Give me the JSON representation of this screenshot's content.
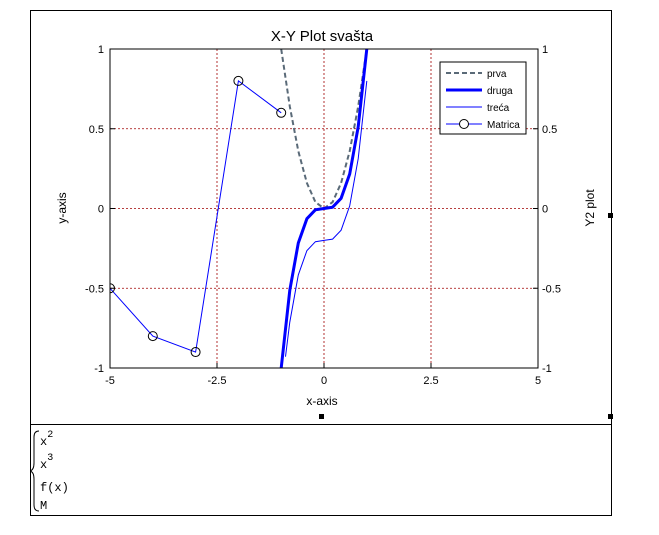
{
  "chart_data": {
    "type": "line",
    "title": "X-Y Plot svašta",
    "xlabel": "x-axis",
    "ylabel": "y-axis",
    "y2label": "Y2 plot",
    "xlim": [
      -5,
      5
    ],
    "ylim": [
      -1,
      1
    ],
    "x_ticks": [
      "-5",
      "-2.5",
      "0",
      "2.5",
      "5"
    ],
    "y_ticks": [
      "1",
      "0.5",
      "0",
      "-0.5",
      "-1"
    ],
    "y2_ticks": [
      "1",
      "0.5",
      "0",
      "-0.5",
      "-1"
    ],
    "grid": true,
    "legend_position": "top-right",
    "series": [
      {
        "name": "prva",
        "color": "#5a6a78",
        "style": "dashed",
        "function": "x^2",
        "x": [
          -1,
          -0.8,
          -0.6,
          -0.4,
          -0.2,
          0,
          0.2,
          0.4,
          0.6,
          0.8,
          1
        ],
        "y": [
          1,
          0.64,
          0.36,
          0.16,
          0.04,
          0,
          0.04,
          0.16,
          0.36,
          0.64,
          1
        ]
      },
      {
        "name": "druga",
        "color": "#0000ff",
        "style": "thick",
        "function": "x^3",
        "x": [
          -1,
          -0.8,
          -0.6,
          -0.4,
          -0.2,
          0,
          0.2,
          0.4,
          0.6,
          0.8,
          1
        ],
        "y": [
          -1,
          -0.512,
          -0.216,
          -0.064,
          -0.008,
          0,
          0.008,
          0.064,
          0.216,
          0.512,
          1
        ]
      },
      {
        "name": "treća",
        "color": "#0000ff",
        "style": "thin",
        "function": "f(x)",
        "x": [
          -0.9,
          -0.8,
          -0.6,
          -0.4,
          -0.2,
          0,
          0.2,
          0.4,
          0.6,
          0.8,
          1
        ],
        "y": [
          -0.929,
          -0.712,
          -0.416,
          -0.264,
          -0.208,
          -0.2,
          -0.192,
          -0.136,
          0.016,
          0.312,
          0.8
        ]
      },
      {
        "name": "Matrica",
        "color": "#0000ff",
        "style": "circles",
        "function": "M",
        "x": [
          -5,
          -4,
          -3,
          -2,
          -1
        ],
        "y": [
          -0.5,
          -0.8,
          -0.9,
          0.8,
          0.6
        ]
      }
    ]
  },
  "expressions": {
    "e1_base": "x",
    "e1_exp": "2",
    "e2_base": "x",
    "e2_exp": "3",
    "e3": "f(x)",
    "e4": "M"
  }
}
